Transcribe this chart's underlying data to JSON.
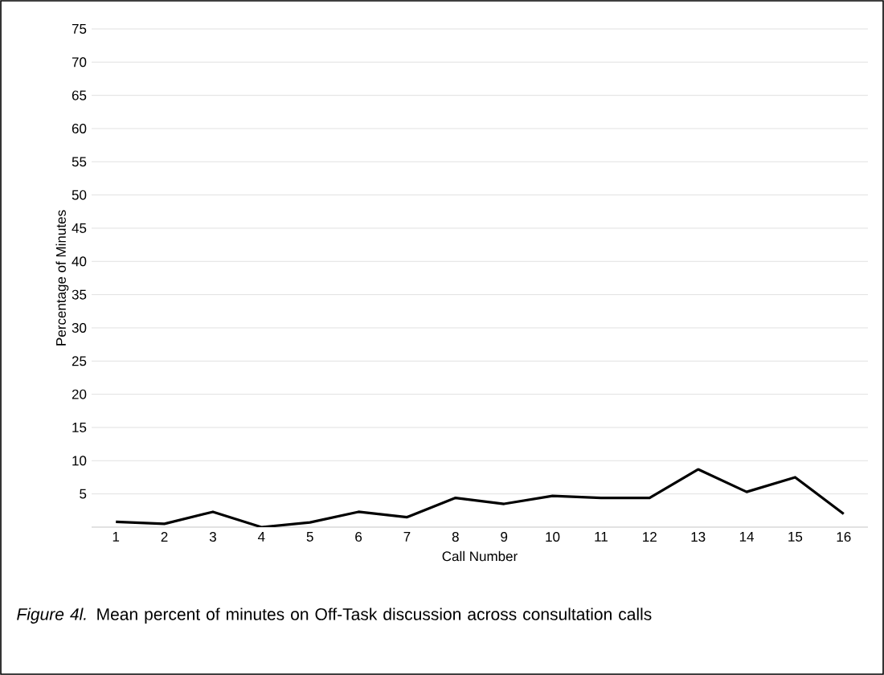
{
  "chart_data": {
    "type": "line",
    "title": "*Figure 4l.* Mean percent of minutes on Off-Task discussion across consultation calls",
    "xlabel": "Call Number",
    "ylabel": "Percentage of Minutes",
    "categories": [
      "1",
      "2",
      "3",
      "4",
      "5",
      "6",
      "7",
      "8",
      "9",
      "10",
      "11",
      "12",
      "13",
      "14",
      "15",
      "16"
    ],
    "series": [
      {
        "color": "#000000",
        "values": [
          0.8,
          0.5,
          2.3,
          0,
          0.7,
          2.3,
          1.5,
          4.4,
          3.5,
          4.7,
          4.4,
          4.4,
          8.7,
          5.3,
          7.5,
          2
        ]
      }
    ],
    "ylim": [
      0,
      75
    ],
    "yticks": [
      {
        "value": 0,
        "label": null
      },
      5,
      10,
      15,
      20,
      25,
      30,
      35,
      40,
      45,
      50,
      55,
      60,
      65,
      70,
      75
    ],
    "grid": "y",
    "marker": "none",
    "line_style": "solid"
  }
}
